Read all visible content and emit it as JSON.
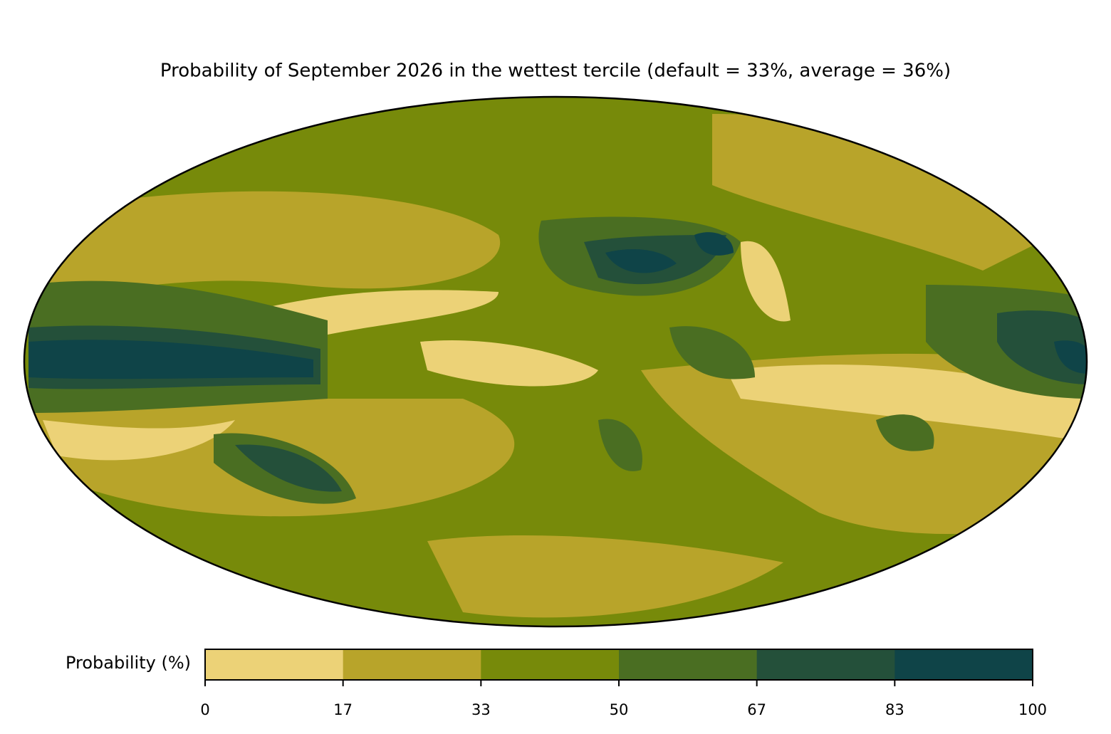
{
  "title": "Probability of September 2026 in the wettest tercile (default = 33%, average = 36%)",
  "colorbar": {
    "label": "Probability (%)",
    "lim": [
      0,
      100
    ],
    "ticks": [
      0,
      17,
      33,
      50,
      67,
      83,
      100
    ],
    "colors": [
      "#ecd277",
      "#b8a42a",
      "#778a0a",
      "#4a6e22",
      "#24503a",
      "#0f4448"
    ]
  }
}
